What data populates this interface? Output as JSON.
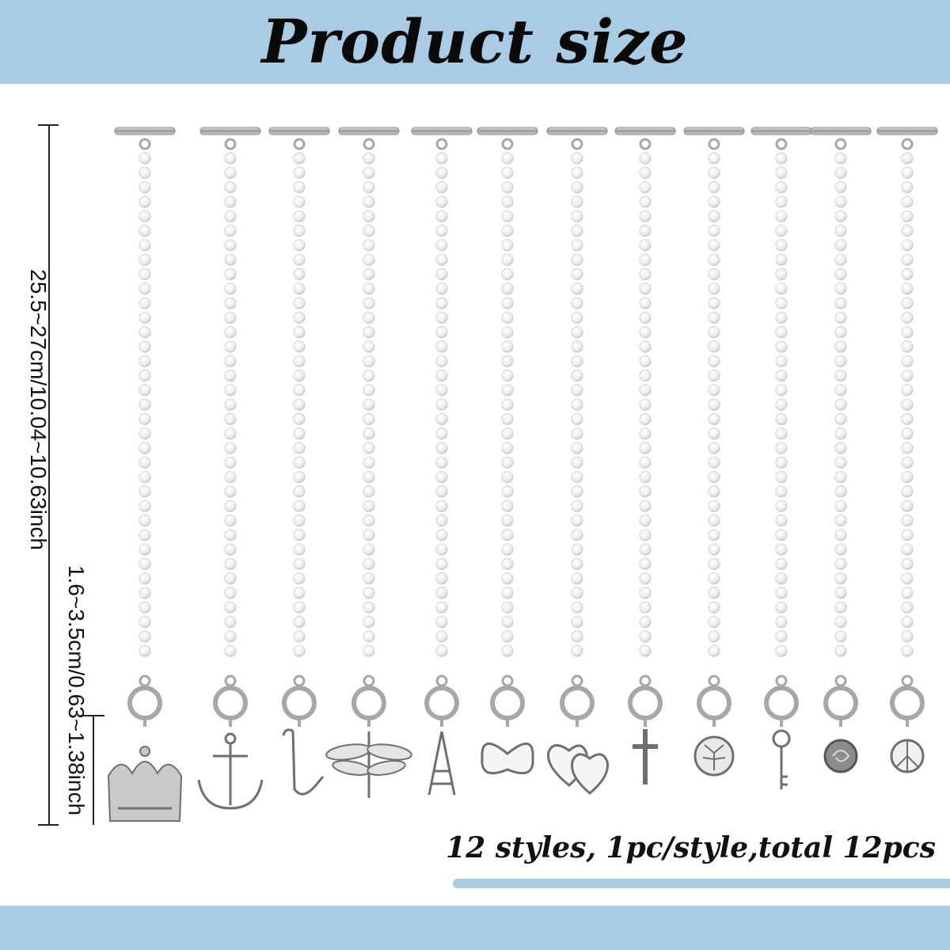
{
  "header": {
    "title": "Product size"
  },
  "dimensions": {
    "total_length": "25.5~27cm/10.04~10.63inch",
    "pendant_size": "1.6~3.5cm/0.63~1.38inch"
  },
  "footer": {
    "summary": "12 styles, 1pc/style,total 12pcs"
  },
  "pendants": [
    {
      "style": "crown"
    },
    {
      "style": "anchor"
    },
    {
      "style": "saxophone"
    },
    {
      "style": "dragonfly"
    },
    {
      "style": "eiffel-tower"
    },
    {
      "style": "butterfly"
    },
    {
      "style": "double-heart"
    },
    {
      "style": "cross"
    },
    {
      "style": "tree-of-life"
    },
    {
      "style": "key"
    },
    {
      "style": "rose"
    },
    {
      "style": "peace-sign"
    }
  ],
  "colors": {
    "band": "#a9cbe3",
    "silver": "#a7a7a7",
    "pearl": "#f3f3f3"
  }
}
